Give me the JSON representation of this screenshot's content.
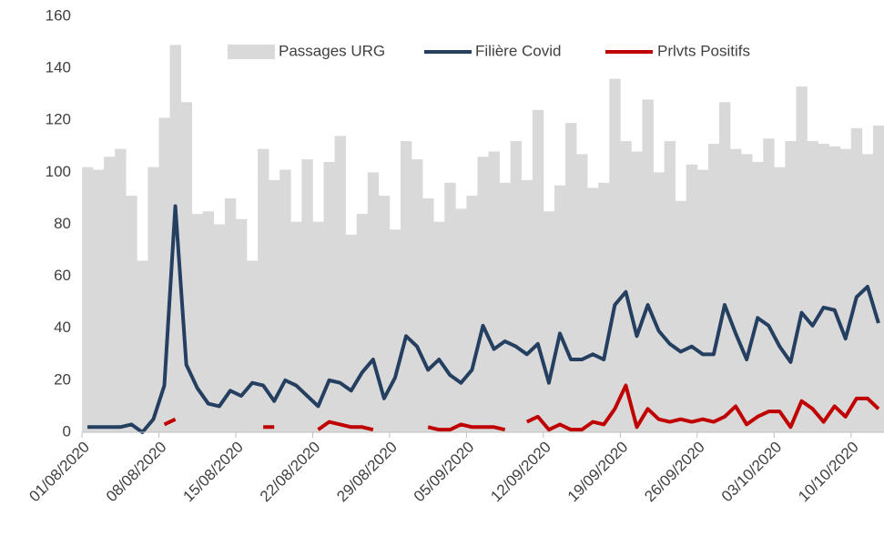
{
  "chart_data": {
    "type": "bar_line",
    "categories": [
      "01/08/2020",
      null,
      null,
      null,
      null,
      null,
      null,
      "08/08/2020",
      null,
      null,
      null,
      null,
      null,
      null,
      "15/08/2020",
      null,
      null,
      null,
      null,
      null,
      null,
      "22/08/2020",
      null,
      null,
      null,
      null,
      null,
      null,
      "29/08/2020",
      null,
      null,
      null,
      null,
      null,
      null,
      "05/09/2020",
      null,
      null,
      null,
      null,
      null,
      null,
      "12/09/2020",
      null,
      null,
      null,
      null,
      null,
      null,
      "19/09/2020",
      null,
      null,
      null,
      null,
      null,
      null,
      "26/09/2020",
      null,
      null,
      null,
      null,
      null,
      null,
      "03/10/2020",
      null,
      null,
      null,
      null,
      null,
      null,
      "10/10/2020",
      null,
      null
    ],
    "series": [
      {
        "name": "Passages URG",
        "kind": "bar",
        "color": "#d9d9d9",
        "values": [
          102,
          101,
          106,
          109,
          91,
          66,
          102,
          121,
          149,
          127,
          84,
          85,
          80,
          90,
          82,
          66,
          109,
          97,
          101,
          81,
          105,
          81,
          104,
          114,
          76,
          84,
          100,
          91,
          78,
          112,
          105,
          90,
          81,
          96,
          86,
          91,
          106,
          108,
          96,
          112,
          97,
          124,
          85,
          95,
          119,
          107,
          94,
          96,
          136,
          112,
          108,
          128,
          100,
          112,
          89,
          103,
          101,
          111,
          127,
          109,
          107,
          104,
          113,
          102,
          112,
          133,
          112,
          111,
          110,
          109,
          117,
          107,
          118
        ]
      },
      {
        "name": "Filière Covid",
        "kind": "line",
        "color": "#243f60",
        "values": [
          2,
          2,
          2,
          2,
          3,
          0,
          5,
          18,
          87,
          26,
          17,
          11,
          10,
          16,
          14,
          19,
          18,
          12,
          20,
          18,
          14,
          10,
          20,
          19,
          16,
          23,
          28,
          13,
          21,
          37,
          33,
          24,
          28,
          22,
          19,
          24,
          41,
          32,
          35,
          33,
          30,
          34,
          19,
          38,
          28,
          28,
          30,
          28,
          49,
          54,
          37,
          49,
          39,
          34,
          31,
          33,
          30,
          30,
          49,
          38,
          28,
          44,
          41,
          33,
          27,
          46,
          41,
          48,
          47,
          36,
          52,
          56,
          42
        ]
      },
      {
        "name": "Prlvts Positifs",
        "kind": "line",
        "color": "#c00000",
        "values": [
          null,
          null,
          null,
          null,
          null,
          null,
          null,
          3,
          5,
          null,
          null,
          null,
          null,
          null,
          null,
          null,
          2,
          2,
          null,
          null,
          null,
          1,
          4,
          3,
          2,
          2,
          1,
          null,
          null,
          null,
          null,
          2,
          1,
          1,
          3,
          2,
          2,
          2,
          1,
          null,
          4,
          6,
          1,
          3,
          1,
          1,
          4,
          3,
          9,
          18,
          2,
          9,
          5,
          4,
          5,
          4,
          5,
          4,
          6,
          10,
          3,
          6,
          8,
          8,
          2,
          12,
          9,
          4,
          10,
          6,
          13,
          13,
          9
        ]
      }
    ],
    "ylim": [
      0,
      160
    ],
    "yticks": [
      0,
      20,
      40,
      60,
      80,
      100,
      120,
      140,
      160
    ],
    "grid": false
  }
}
